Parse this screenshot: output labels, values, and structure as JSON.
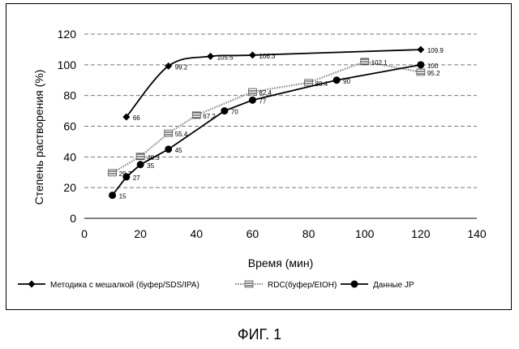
{
  "chart_data": {
    "type": "line",
    "title": "",
    "xlabel": "Время (мин)",
    "ylabel": "Степень растворения (%)",
    "xlim": [
      0,
      140
    ],
    "ylim": [
      0,
      120
    ],
    "xticks": [
      0,
      20,
      40,
      60,
      80,
      100,
      120,
      140
    ],
    "yticks": [
      0,
      20,
      40,
      60,
      80,
      100,
      120
    ],
    "grid": "horizontal-dashed",
    "legend_position": "bottom",
    "series": [
      {
        "name": "Методика с мешалкой (буфер/SDS/IPA)",
        "marker": "diamond",
        "line": "solid",
        "color": "#000000",
        "x": [
          15,
          30,
          45,
          60,
          120
        ],
        "y": [
          66,
          99.2,
          105.5,
          106.3,
          109.9
        ],
        "labels": [
          "66",
          "99.2",
          "105.5",
          "106.3",
          "109.9"
        ]
      },
      {
        "name": "RDC(буфер/EtOH)",
        "marker": "hatched-square",
        "line": "dotted",
        "color": "#666666",
        "x": [
          10,
          20,
          30,
          40,
          60,
          80,
          100,
          120
        ],
        "y": [
          29.7,
          40.3,
          55.4,
          67.2,
          82.4,
          88.4,
          102.1,
          95.2
        ],
        "labels": [
          "29.7",
          "40.3",
          "55.4",
          "67.2",
          "82.4",
          "88.4",
          "102.1",
          "95.2"
        ]
      },
      {
        "name": "Данные JP",
        "marker": "circle",
        "line": "solid",
        "color": "#000000",
        "x": [
          10,
          15,
          20,
          30,
          50,
          60,
          90,
          120
        ],
        "y": [
          15,
          27,
          35,
          45,
          70,
          77,
          90,
          100
        ],
        "labels": [
          "15",
          "27",
          "35",
          "45",
          "70",
          "77",
          "90",
          "100"
        ]
      }
    ]
  },
  "caption": "ФИГ. 1"
}
